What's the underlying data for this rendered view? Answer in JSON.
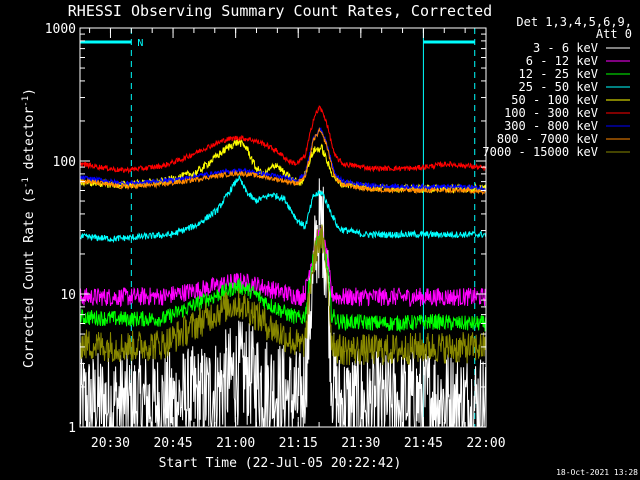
{
  "chart_data": {
    "type": "line",
    "title": "RHESSI Observing Summary Count Rates, Corrected",
    "xlabel": "Start Time (22-Jul-05 20:22:42)",
    "ylabel_main": "Corrected Count Rate (s",
    "ylabel_sup1": "-1",
    "ylabel_mid": " detector",
    "ylabel_sup2": "-1",
    "ylabel_end": ")",
    "y_scale": "log",
    "ylim": [
      1,
      1000
    ],
    "x_unit": "minutes after 20:22:42",
    "xlim": [
      0,
      97.3
    ],
    "x_ticks": [
      {
        "label": "20:30",
        "value": 7.3
      },
      {
        "label": "20:45",
        "value": 22.3
      },
      {
        "label": "21:00",
        "value": 37.3
      },
      {
        "label": "21:15",
        "value": 52.3
      },
      {
        "label": "21:30",
        "value": 67.3
      },
      {
        "label": "21:45",
        "value": 82.3
      },
      {
        "label": "22:00",
        "value": 97.3
      }
    ],
    "y_ticks": [
      {
        "label": "1",
        "value": 1
      },
      {
        "label": "10",
        "value": 10
      },
      {
        "label": "100",
        "value": 100
      },
      {
        "label": "1000",
        "value": 1000
      }
    ],
    "legend_header": [
      "Det 1,3,4,5,6,9,",
      "Att 0"
    ],
    "legend_position": "right",
    "night_label": "N",
    "footer_date": "18-Oct-2021 13:28",
    "markers": {
      "solid_x": [
        0,
        82.3
      ],
      "dashed_x": [
        12.3,
        94.6
      ],
      "night_bars": [
        [
          0,
          12.3
        ],
        [
          82.3,
          94.6
        ]
      ],
      "color": "#00ffff"
    },
    "series": [
      {
        "name": "3 - 6 keV",
        "color": "#ffffff",
        "points": [
          [
            0,
            1.5
          ],
          [
            10,
            1.5
          ],
          [
            20,
            1.5
          ],
          [
            30,
            1.7
          ],
          [
            35,
            2.2
          ],
          [
            38,
            2.6
          ],
          [
            41,
            2.4
          ],
          [
            45,
            2.0
          ],
          [
            50,
            1.7
          ],
          [
            53,
            1.5
          ],
          [
            54,
            2.5
          ],
          [
            55.5,
            10
          ],
          [
            57,
            30
          ],
          [
            58,
            35
          ],
          [
            59.3,
            15
          ],
          [
            60.3,
            2.5
          ],
          [
            62,
            1.5
          ],
          [
            75,
            1.5
          ],
          [
            85,
            1.7
          ],
          [
            90,
            1.5
          ],
          [
            97,
            1.5
          ]
        ]
      },
      {
        "name": "6 - 12 keV",
        "color": "#ff00ff",
        "points": [
          [
            0,
            9.5
          ],
          [
            10,
            9.5
          ],
          [
            20,
            9.6
          ],
          [
            30,
            11
          ],
          [
            35,
            12
          ],
          [
            38,
            12.5
          ],
          [
            41,
            12
          ],
          [
            45,
            11
          ],
          [
            50,
            10
          ],
          [
            53,
            9.5
          ],
          [
            54,
            10.5
          ],
          [
            55.5,
            18
          ],
          [
            57,
            27
          ],
          [
            58,
            28
          ],
          [
            59.3,
            18
          ],
          [
            60.3,
            10
          ],
          [
            62,
            9.5
          ],
          [
            75,
            9.5
          ],
          [
            85,
            9.5
          ],
          [
            90,
            9.5
          ],
          [
            97,
            9.5
          ]
        ]
      },
      {
        "name": "12 - 25 keV",
        "color": "#00ff00",
        "points": [
          [
            0,
            6.7
          ],
          [
            10,
            6.5
          ],
          [
            20,
            6.5
          ],
          [
            30,
            9
          ],
          [
            35,
            10.5
          ],
          [
            38,
            11.5
          ],
          [
            41,
            10.5
          ],
          [
            45,
            8.5
          ],
          [
            50,
            7
          ],
          [
            53,
            6.5
          ],
          [
            54,
            7
          ],
          [
            55.5,
            16
          ],
          [
            57,
            26
          ],
          [
            58,
            27
          ],
          [
            59.3,
            16
          ],
          [
            60.3,
            7
          ],
          [
            62,
            6.2
          ],
          [
            75,
            6
          ],
          [
            85,
            6.2
          ],
          [
            90,
            6
          ],
          [
            97,
            6
          ]
        ]
      },
      {
        "name": "25 - 50 keV",
        "color": "#00ffff",
        "points": [
          [
            0,
            27
          ],
          [
            8,
            26
          ],
          [
            15,
            27
          ],
          [
            22,
            28
          ],
          [
            28,
            33
          ],
          [
            33,
            43
          ],
          [
            36,
            60
          ],
          [
            38,
            75
          ],
          [
            40,
            58
          ],
          [
            42,
            50
          ],
          [
            46,
            56
          ],
          [
            49,
            52
          ],
          [
            52,
            36
          ],
          [
            54,
            32
          ],
          [
            56,
            55
          ],
          [
            58,
            58
          ],
          [
            60,
            42
          ],
          [
            62,
            31
          ],
          [
            68,
            28
          ],
          [
            80,
            28
          ],
          [
            90,
            28
          ],
          [
            97,
            28
          ]
        ]
      },
      {
        "name": "50 - 100 keV",
        "color": "#ffff00",
        "points": [
          [
            0,
            70
          ],
          [
            10,
            66
          ],
          [
            20,
            70
          ],
          [
            28,
            82
          ],
          [
            33,
            110
          ],
          [
            36,
            130
          ],
          [
            38,
            140
          ],
          [
            40,
            125
          ],
          [
            42,
            90
          ],
          [
            44,
            78
          ],
          [
            47,
            95
          ],
          [
            49,
            80
          ],
          [
            51,
            72
          ],
          [
            53,
            68
          ],
          [
            56,
            120
          ],
          [
            58,
            125
          ],
          [
            60,
            85
          ],
          [
            62,
            68
          ],
          [
            70,
            63
          ],
          [
            80,
            62
          ],
          [
            90,
            62
          ],
          [
            97,
            62
          ]
        ]
      },
      {
        "name": "100 - 300 keV",
        "color": "#ff0000",
        "points": [
          [
            0,
            95
          ],
          [
            5,
            90
          ],
          [
            10,
            85
          ],
          [
            15,
            88
          ],
          [
            20,
            92
          ],
          [
            25,
            105
          ],
          [
            30,
            125
          ],
          [
            35,
            145
          ],
          [
            38,
            150
          ],
          [
            41,
            145
          ],
          [
            44,
            135
          ],
          [
            47,
            120
          ],
          [
            50,
            100
          ],
          [
            52,
            95
          ],
          [
            54,
            110
          ],
          [
            56,
            210
          ],
          [
            57.5,
            255
          ],
          [
            59,
            200
          ],
          [
            61,
            110
          ],
          [
            63,
            95
          ],
          [
            70,
            88
          ],
          [
            80,
            88
          ],
          [
            88,
            95
          ],
          [
            93,
            92
          ],
          [
            97,
            88
          ]
        ]
      },
      {
        "name": "300 - 800 keV",
        "color": "#0000ff",
        "points": [
          [
            0,
            75
          ],
          [
            5,
            72
          ],
          [
            10,
            68
          ],
          [
            15,
            69
          ],
          [
            20,
            71
          ],
          [
            25,
            74
          ],
          [
            30,
            79
          ],
          [
            35,
            83
          ],
          [
            38,
            85
          ],
          [
            41,
            83
          ],
          [
            44,
            80
          ],
          [
            47,
            77
          ],
          [
            50,
            74
          ],
          [
            52,
            72
          ],
          [
            54,
            80
          ],
          [
            56,
            150
          ],
          [
            57.5,
            175
          ],
          [
            59,
            140
          ],
          [
            61,
            80
          ],
          [
            63,
            70
          ],
          [
            70,
            65
          ],
          [
            80,
            64
          ],
          [
            88,
            64
          ],
          [
            93,
            64
          ],
          [
            97,
            62
          ]
        ]
      },
      {
        "name": "800 - 7000 keV",
        "color": "#ff8800",
        "points": [
          [
            0,
            71
          ],
          [
            5,
            68
          ],
          [
            10,
            64
          ],
          [
            15,
            65
          ],
          [
            20,
            67
          ],
          [
            25,
            70
          ],
          [
            30,
            75
          ],
          [
            35,
            79
          ],
          [
            38,
            81
          ],
          [
            41,
            79
          ],
          [
            44,
            76
          ],
          [
            47,
            73
          ],
          [
            50,
            70
          ],
          [
            52,
            68
          ],
          [
            54,
            76
          ],
          [
            56,
            145
          ],
          [
            57.5,
            170
          ],
          [
            59,
            135
          ],
          [
            61,
            76
          ],
          [
            63,
            66
          ],
          [
            70,
            61
          ],
          [
            80,
            60
          ],
          [
            88,
            60
          ],
          [
            93,
            60
          ],
          [
            97,
            58
          ]
        ]
      },
      {
        "name": "7000 - 15000 keV",
        "color": "#888800",
        "points": [
          [
            0,
            4.2
          ],
          [
            10,
            4
          ],
          [
            20,
            4.2
          ],
          [
            30,
            6.5
          ],
          [
            35,
            8
          ],
          [
            38,
            8.5
          ],
          [
            41,
            7.5
          ],
          [
            45,
            5.8
          ],
          [
            50,
            4.6
          ],
          [
            53,
            4
          ],
          [
            54,
            4.5
          ],
          [
            55.5,
            14
          ],
          [
            57,
            25
          ],
          [
            58,
            26
          ],
          [
            59.3,
            14
          ],
          [
            60.3,
            4.5
          ],
          [
            62,
            3.8
          ],
          [
            75,
            3.8
          ],
          [
            85,
            4
          ],
          [
            90,
            3.9
          ],
          [
            97,
            4
          ]
        ]
      }
    ]
  }
}
